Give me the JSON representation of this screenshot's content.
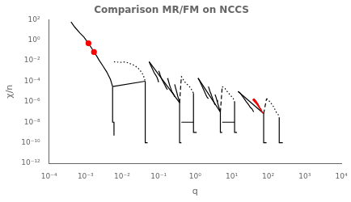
{
  "chart_data": {
    "type": "line",
    "title": "Comparison MR/FM on NCCS",
    "x_label": "q",
    "y_label": "χ/n",
    "log": true,
    "grid": false,
    "xlim": [
      0.0001,
      10000.0
    ],
    "ylim": [
      1e-12,
      100.0
    ],
    "xticks": [
      {
        "value": 0.0001,
        "label": "10⁻⁴"
      },
      {
        "value": 0.001,
        "label": "10⁻³"
      },
      {
        "value": 0.01,
        "label": "10⁻²"
      },
      {
        "value": 0.1,
        "label": "10⁻¹"
      },
      {
        "value": 1,
        "label": "10⁰"
      },
      {
        "value": 10,
        "label": "10¹"
      },
      {
        "value": 100,
        "label": "10²"
      },
      {
        "value": 1000,
        "label": "10³"
      },
      {
        "value": 10000,
        "label": "10⁴"
      }
    ],
    "yticks": [
      {
        "value": 1e-12,
        "label": "10⁻¹²"
      },
      {
        "value": 1e-10,
        "label": "10⁻¹⁰"
      },
      {
        "value": 1e-08,
        "label": "10⁻⁸"
      },
      {
        "value": 1e-06,
        "label": "10⁻⁶"
      },
      {
        "value": 0.0001,
        "label": "10⁻⁴"
      },
      {
        "value": 0.01,
        "label": "10⁻²"
      },
      {
        "value": 1,
        "label": "10⁰"
      },
      {
        "value": 100,
        "label": "10²"
      }
    ],
    "series": [
      {
        "color": "black",
        "line_style": "solid",
        "marker": "none",
        "x": [
          0.0004,
          0.0005,
          0.0007,
          0.0009,
          0.0012,
          0.0015,
          0.0017,
          0.002,
          0.0024,
          0.003,
          0.0038,
          0.0048,
          0.0055
        ],
        "values": [
          60.0,
          20.0,
          5.0,
          2.0,
          0.5,
          0.15,
          0.07,
          0.03,
          0.01,
          0.003,
          0.0008,
          0.00015,
          3e-05
        ]
      },
      {
        "color": "red",
        "line_style": "none",
        "marker": "circle",
        "x": [
          0.0012,
          0.0017
        ],
        "values": [
          0.5,
          0.07
        ]
      },
      {
        "color": "black",
        "line_style": "solid",
        "marker": "none",
        "x": [
          0.0055,
          0.0055,
          0.006,
          0.006
        ],
        "values": [
          3e-05,
          1e-08,
          1e-08,
          5e-10
        ]
      },
      {
        "color": "black",
        "line_style": "dotted",
        "marker": "none",
        "x": [
          0.006,
          0.007,
          0.008,
          0.009,
          0.011,
          0.013,
          0.015,
          0.017,
          0.02,
          0.023,
          0.027,
          0.032,
          0.038,
          0.043
        ],
        "values": [
          0.008,
          0.007,
          0.0075,
          0.007,
          0.0075,
          0.007,
          0.006,
          0.005,
          0.004,
          0.003,
          0.002,
          0.001,
          0.0004,
          0.0001
        ]
      },
      {
        "color": "black",
        "line_style": "solid",
        "marker": "none",
        "x": [
          0.043,
          0.043,
          0.05
        ],
        "values": [
          0.0001,
          1e-10,
          1e-10
        ]
      },
      {
        "color": "black",
        "line_style": "solid",
        "marker": "none",
        "x": [
          0.0055,
          0.043
        ],
        "values": [
          3e-05,
          0.0001
        ]
      },
      {
        "color": "black",
        "line_style": "solid",
        "marker": "none",
        "x": [
          0.055,
          0.375
        ],
        "values": [
          0.008,
          8e-07
        ]
      },
      {
        "color": "black",
        "line_style": "solid",
        "marker": "none",
        "x": [
          1.2,
          4.9
        ],
        "values": [
          0.0002,
          1e-07
        ]
      },
      {
        "color": "black",
        "line_style": "solid",
        "marker": "none",
        "x": [
          15,
          75
        ],
        "values": [
          1e-05,
          7e-08
        ]
      },
      {
        "color": "black",
        "line_style": "solid",
        "marker": "none",
        "x": [
          0.055,
          0.058,
          0.062,
          0.068,
          0.075,
          0.083,
          0.09,
          0.095,
          0.1
        ],
        "values": [
          0.008,
          0.005,
          0.003,
          0.0015,
          0.0007,
          0.0004,
          0.00025,
          0.00015,
          8e-05
        ]
      },
      {
        "color": "black",
        "line_style": "solid",
        "marker": "none",
        "x": [
          0.1,
          0.105,
          0.11,
          0.118,
          0.13,
          0.145,
          0.155,
          0.165,
          0.175
        ],
        "values": [
          0.001,
          0.0007,
          0.0004,
          0.0002,
          0.0001,
          5e-05,
          3e-05,
          2e-05,
          1.5e-05
        ]
      },
      {
        "color": "black",
        "line_style": "solid",
        "marker": "none",
        "x": [
          0.175,
          0.18,
          0.19,
          0.2,
          0.215,
          0.23,
          0.245,
          0.26,
          0.275
        ],
        "values": [
          0.0002,
          0.00015,
          8e-05,
          4e-05,
          2e-05,
          1e-05,
          7e-06,
          5e-06,
          3e-06
        ]
      },
      {
        "color": "black",
        "line_style": "solid",
        "marker": "none",
        "x": [
          0.275,
          0.285,
          0.3,
          0.315,
          0.33,
          0.35,
          0.375
        ],
        "values": [
          5e-05,
          3e-05,
          1.5e-05,
          8e-06,
          4e-06,
          2e-06,
          8e-07
        ]
      },
      {
        "color": "black",
        "line_style": "solid",
        "marker": "none",
        "x": [
          0.375,
          0.375,
          0.42
        ],
        "values": [
          8e-07,
          1e-10,
          1e-10
        ]
      },
      {
        "color": "black",
        "line_style": "dotted",
        "marker": "none",
        "x": [
          0.42,
          0.44,
          0.47,
          0.5,
          0.55,
          0.6,
          0.65,
          0.7,
          0.75,
          0.8,
          0.85,
          0.9
        ],
        "values": [
          0.0003,
          0.0002,
          0.00015,
          0.0001,
          7e-05,
          5e-05,
          4e-05,
          3e-05,
          2e-05,
          1.5e-05,
          1e-05,
          7e-06
        ]
      },
      {
        "color": "black",
        "line_style": "solid",
        "marker": "none",
        "x": [
          0.9,
          0.9,
          1.1
        ],
        "values": [
          7e-06,
          1e-09,
          1e-09
        ]
      },
      {
        "color": "black",
        "line_style": "solid",
        "marker": "none",
        "x": [
          0.42,
          0.9
        ],
        "values": [
          1e-08,
          1e-08
        ]
      },
      {
        "color": "black",
        "line_style": "solid",
        "marker": "none",
        "x": [
          1.2,
          1.3,
          1.4,
          1.5,
          1.65,
          1.8,
          1.95,
          2.1,
          2.3
        ],
        "values": [
          0.0002,
          0.00012,
          7e-05,
          4e-05,
          2e-05,
          1e-05,
          5e-06,
          3e-06,
          2e-06
        ]
      },
      {
        "color": "black",
        "line_style": "solid",
        "marker": "none",
        "x": [
          2.3,
          2.4,
          2.55,
          2.7,
          2.9,
          3.1,
          3.3,
          3.5
        ],
        "values": [
          3e-05,
          2e-05,
          1e-05,
          6e-06,
          3e-06,
          1.5e-06,
          8e-07,
          5e-07
        ]
      },
      {
        "color": "black",
        "line_style": "solid",
        "marker": "none",
        "x": [
          3.5,
          3.7,
          3.9,
          4.1,
          4.35,
          4.6,
          4.9
        ],
        "values": [
          5e-06,
          3e-06,
          1.5e-06,
          8e-07,
          4e-07,
          2e-07,
          1e-07
        ]
      },
      {
        "color": "black",
        "line_style": "solid",
        "marker": "none",
        "x": [
          4.9,
          4.9,
          5.5
        ],
        "values": [
          1e-07,
          1e-09,
          1e-09
        ]
      },
      {
        "color": "black",
        "line_style": "dotted",
        "marker": "none",
        "x": [
          5.5,
          6.0,
          6.5,
          7.0,
          7.5,
          8.0,
          8.5,
          9.0,
          9.5,
          10.0,
          11.0,
          12.0
        ],
        "values": [
          3e-05,
          2.5e-05,
          2e-05,
          1.5e-05,
          1e-05,
          8e-06,
          6e-06,
          5e-06,
          4e-06,
          3e-06,
          2e-06,
          1e-06
        ]
      },
      {
        "color": "black",
        "line_style": "solid",
        "marker": "none",
        "x": [
          12.0,
          12.0,
          14.0
        ],
        "values": [
          1e-06,
          1e-09,
          1e-09
        ]
      },
      {
        "color": "black",
        "line_style": "solid",
        "marker": "none",
        "x": [
          5.5,
          12.0
        ],
        "values": [
          1e-08,
          1e-08
        ]
      },
      {
        "color": "black",
        "line_style": "solid",
        "marker": "none",
        "x": [
          15,
          17,
          19,
          22,
          25,
          28,
          32,
          36,
          40
        ],
        "values": [
          1e-05,
          7e-06,
          4e-06,
          2e-06,
          1e-06,
          6e-07,
          3e-07,
          2e-07,
          1e-07
        ]
      },
      {
        "color": "black",
        "line_style": "solid",
        "marker": "none",
        "x": [
          40,
          43,
          47,
          52,
          57,
          62,
          68,
          75
        ],
        "values": [
          2e-06,
          1.5e-06,
          1e-06,
          6e-07,
          3e-07,
          2e-07,
          1e-07,
          7e-08
        ]
      },
      {
        "type": "area",
        "color": "red",
        "line_style": "solid",
        "marker": "none",
        "x": [
          40,
          43,
          47,
          52,
          57,
          62,
          68,
          75,
          70,
          63,
          55,
          48,
          42,
          38,
          40
        ],
        "values": [
          2e-06,
          1.5e-06,
          1e-06,
          6e-07,
          3e-07,
          2e-07,
          1e-07,
          7e-08,
          9e-08,
          1.5e-07,
          3e-07,
          6e-07,
          1e-06,
          1.5e-06,
          2e-06
        ]
      },
      {
        "color": "black",
        "line_style": "solid",
        "marker": "none",
        "x": [
          75,
          75,
          90
        ],
        "values": [
          7e-08,
          1e-10,
          1e-10
        ]
      },
      {
        "color": "black",
        "line_style": "dotted",
        "marker": "none",
        "x": [
          90,
          100,
          110,
          120,
          135,
          150,
          165,
          185,
          200
        ],
        "values": [
          2e-06,
          1.5e-06,
          1e-06,
          7e-07,
          4e-07,
          2e-07,
          1e-07,
          6e-08,
          3e-08
        ]
      },
      {
        "color": "black",
        "line_style": "solid",
        "marker": "none",
        "x": [
          200,
          200,
          250
        ],
        "values": [
          3e-08,
          1e-10,
          1e-10
        ]
      },
      {
        "color": "black",
        "line_style": "dashed",
        "marker": "none",
        "x": [
          0.375,
          0.42
        ],
        "values": [
          8e-07,
          0.0003
        ]
      },
      {
        "color": "black",
        "line_style": "dashed",
        "marker": "none",
        "x": [
          4.9,
          5.5
        ],
        "values": [
          1e-07,
          3e-05
        ]
      },
      {
        "color": "black",
        "line_style": "dashed",
        "marker": "none",
        "x": [
          75,
          90
        ],
        "values": [
          7e-08,
          2e-06
        ]
      }
    ]
  }
}
